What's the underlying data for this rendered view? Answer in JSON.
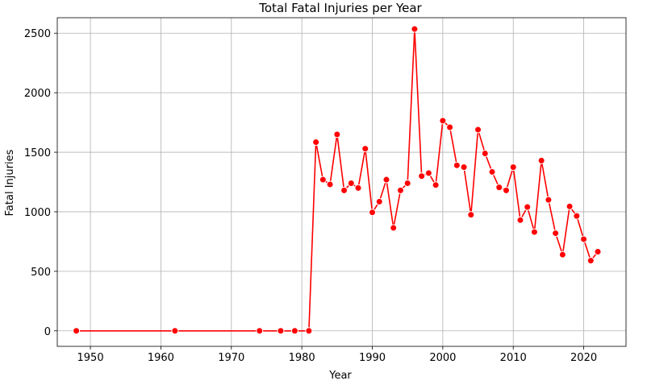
{
  "chart_data": {
    "type": "line",
    "title": "Total Fatal Injuries per Year",
    "xlabel": "Year",
    "ylabel": "Fatal Injuries",
    "xlim": [
      1945.3,
      2026.0
    ],
    "ylim": [
      -130,
      2630
    ],
    "xticks": [
      1950,
      1960,
      1970,
      1980,
      1990,
      2000,
      2010,
      2020
    ],
    "yticks": [
      0,
      500,
      1000,
      1500,
      2000,
      2500
    ],
    "grid": true,
    "series": [
      {
        "color": "#ff0000",
        "marker": "circle",
        "x": [
          1948,
          1962,
          1974,
          1977,
          1979,
          1981,
          1982,
          1983,
          1984,
          1985,
          1986,
          1987,
          1988,
          1989,
          1990,
          1991,
          1992,
          1993,
          1994,
          1995,
          1996,
          1997,
          1998,
          1999,
          2000,
          2001,
          2002,
          2003,
          2004,
          2005,
          2006,
          2007,
          2008,
          2009,
          2010,
          2011,
          2012,
          2013,
          2014,
          2015,
          2016,
          2017,
          2018,
          2019,
          2020,
          2021,
          2022
        ],
        "y": [
          0,
          0,
          0,
          0,
          0,
          0,
          1585,
          1270,
          1230,
          1650,
          1180,
          1240,
          1200,
          1530,
          995,
          1085,
          1270,
          865,
          1180,
          1240,
          2535,
          1300,
          1325,
          1225,
          1765,
          1710,
          1390,
          1375,
          975,
          1690,
          1490,
          1335,
          1205,
          1180,
          1375,
          930,
          1040,
          830,
          1430,
          1100,
          820,
          640,
          1045,
          965,
          770,
          590,
          665
        ]
      }
    ]
  }
}
